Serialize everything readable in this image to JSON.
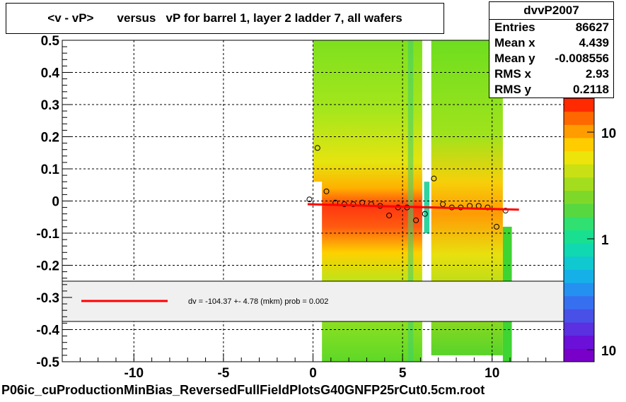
{
  "chart_data": {
    "type": "heatmap",
    "title": "<v - vP>       versus   vP for barrel 1, layer 2 ladder 7, all wafers",
    "xlim": [
      -14,
      14
    ],
    "ylim": [
      -0.5,
      0.5
    ],
    "x_ticks": [
      "-10",
      "-5",
      "0",
      "5",
      "10"
    ],
    "x_tick_values": [
      -10,
      -5,
      0,
      5,
      10
    ],
    "y_ticks": [
      "0.5",
      "0.4",
      "0.3",
      "0.2",
      "0.1",
      "0",
      "-0.1",
      "-0.2",
      "-0.3",
      "-0.4",
      "-0.5"
    ],
    "y_tick_values": [
      0.5,
      0.4,
      0.3,
      0.2,
      0.1,
      0,
      -0.1,
      -0.2,
      -0.3,
      -0.4,
      -0.5
    ],
    "grid": true,
    "colorbar": {
      "ticks": [
        "10",
        "1",
        "10"
      ],
      "scale": "log"
    },
    "profile_points": {
      "x": [
        -0.2,
        0.25,
        0.75,
        1.25,
        1.75,
        2.25,
        2.75,
        3.25,
        3.75,
        4.25,
        4.75,
        5.25,
        5.75,
        6.25,
        6.75,
        7.25,
        7.75,
        8.25,
        8.75,
        9.25,
        9.75,
        10.25,
        10.75
      ],
      "y": [
        0.005,
        0.165,
        0.03,
        -0.005,
        -0.01,
        -0.01,
        -0.005,
        -0.01,
        -0.015,
        -0.045,
        -0.02,
        -0.02,
        -0.06,
        -0.04,
        0.07,
        -0.01,
        -0.02,
        -0.02,
        -0.015,
        -0.015,
        -0.02,
        -0.08,
        -0.03
      ]
    },
    "fit_line": {
      "x": [
        -0.3,
        11.5
      ],
      "y": [
        -0.01,
        -0.027
      ],
      "color": "#ff0000"
    },
    "legend": {
      "text": "dv = -104.37 +-  4.78 (mkm) prob = 0.002"
    }
  },
  "stats": {
    "name": "dvvP2007",
    "rows": [
      {
        "label": "Entries",
        "value": "86627"
      },
      {
        "label": "Mean x",
        "value": "4.439"
      },
      {
        "label": "Mean y",
        "value": "-0.008556"
      },
      {
        "label": "RMS x",
        "value": "2.93"
      },
      {
        "label": "RMS y",
        "value": "0.2118"
      }
    ]
  },
  "footer": "P06ic_cuProductionMinBias_ReversedFullFieldPlotsG40GNFP25rCut0.5cm.root"
}
